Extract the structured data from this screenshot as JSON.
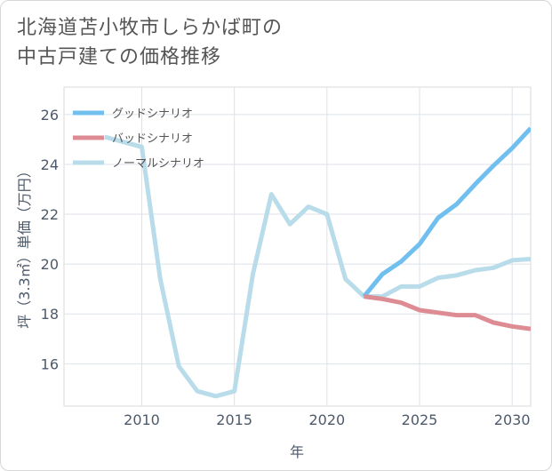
{
  "title": {
    "line1": "北海道苫小牧市しらかば町の",
    "line2": "中古戸建ての価格推移"
  },
  "chart_data": {
    "type": "line",
    "title": "北海道苫小牧市しらかば町の中古戸建ての価格推移",
    "xlabel": "年",
    "ylabel": "坪（3.3㎡）単価（万円）",
    "xlim": [
      2005.8,
      2031
    ],
    "ylim": [
      14.3,
      27.1
    ],
    "xticks": [
      2010,
      2015,
      2020,
      2025,
      2030
    ],
    "yticks": [
      16,
      18,
      20,
      22,
      24,
      26
    ],
    "grid": true,
    "legend_position": "top-left",
    "series": [
      {
        "name": "ノーマルシナリオ",
        "color": "#b8dcea",
        "x": [
          2008,
          2009,
          2010,
          2011,
          2012,
          2013,
          2014,
          2015,
          2016,
          2017,
          2018,
          2019,
          2020,
          2021,
          2022,
          2023,
          2024,
          2025,
          2026,
          2027,
          2028,
          2029,
          2030,
          2031
        ],
        "y": [
          25.1,
          24.9,
          24.7,
          19.4,
          15.9,
          14.9,
          14.7,
          14.9,
          19.6,
          22.8,
          21.6,
          22.3,
          22.0,
          19.4,
          18.7,
          18.7,
          19.1,
          19.1,
          19.45,
          19.55,
          19.75,
          19.85,
          20.15,
          20.2
        ]
      },
      {
        "name": "グッドシナリオ",
        "color": "#70bfee",
        "x": [
          2022,
          2023,
          2024,
          2025,
          2026,
          2027,
          2028,
          2029,
          2030,
          2031
        ],
        "y": [
          18.7,
          19.6,
          20.1,
          20.8,
          21.85,
          22.4,
          23.2,
          23.95,
          24.65,
          25.45
        ]
      },
      {
        "name": "バッドシナリオ",
        "color": "#de8c93",
        "x": [
          2022,
          2023,
          2024,
          2025,
          2026,
          2027,
          2028,
          2029,
          2030,
          2031
        ],
        "y": [
          18.7,
          18.6,
          18.45,
          18.15,
          18.05,
          17.95,
          17.95,
          17.65,
          17.5,
          17.4
        ]
      }
    ],
    "legend": [
      {
        "name": "グッドシナリオ",
        "color": "#70bfee"
      },
      {
        "name": "バッドシナリオ",
        "color": "#de8c93"
      },
      {
        "name": "ノーマルシナリオ",
        "color": "#b8dcea"
      }
    ]
  }
}
